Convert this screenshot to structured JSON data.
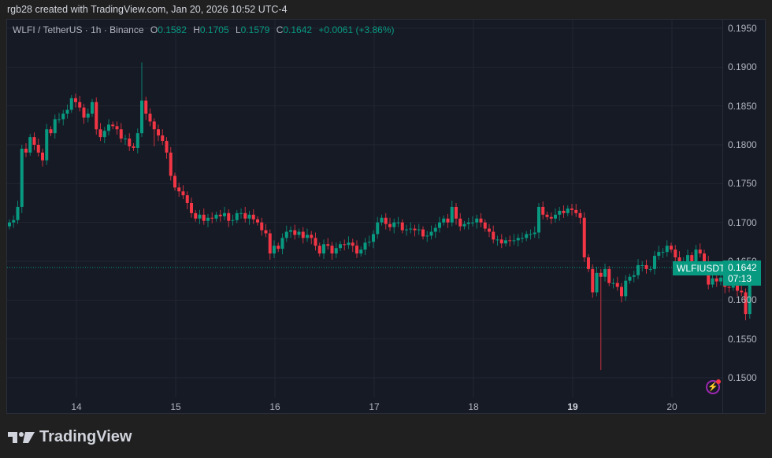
{
  "credit": "rgb28 created with TradingView.com, Jan 20, 2026 10:52 UTC-4",
  "legend": {
    "symbol": "WLFI / TetherUS · 1h · Binance",
    "o_label": "O",
    "o_value": "0.1582",
    "h_label": "H",
    "h_value": "0.1705",
    "l_label": "L",
    "l_value": "0.1579",
    "c_label": "C",
    "c_value": "0.1642",
    "change": "+0.0061 (+3.86%)"
  },
  "last_price_label": {
    "symbol": "WLFIUSDT",
    "price": "0.1642",
    "countdown": "07:13"
  },
  "logo_text": "TradingView",
  "colors": {
    "up": "#089981",
    "down": "#f23645",
    "background": "#161a25",
    "grid": "#232632",
    "accent": "#9c27b0"
  },
  "chart_data": {
    "type": "candlestick",
    "title": "WLFI / TetherUS · 1h · Binance",
    "xlabel": "",
    "ylabel": "",
    "ylim": [
      0.149,
      0.196
    ],
    "grid": true,
    "y_ticks": [
      "0.1950",
      "0.1900",
      "0.1850",
      "0.1800",
      "0.1750",
      "0.1700",
      "0.1650",
      "0.1600",
      "0.1550",
      "0.1500"
    ],
    "x_ticks": [
      "14",
      "15",
      "16",
      "17",
      "18",
      "19",
      "20"
    ],
    "x_tick_bold": "19",
    "current_price": 0.1642,
    "closes": [
      0.17,
      0.1703,
      0.172,
      0.1795,
      0.179,
      0.181,
      0.18,
      0.179,
      0.178,
      0.182,
      0.1815,
      0.1833,
      0.1833,
      0.184,
      0.1845,
      0.186,
      0.1855,
      0.1848,
      0.1835,
      0.184,
      0.1855,
      0.182,
      0.181,
      0.1818,
      0.1826,
      0.1824,
      0.182,
      0.1808,
      0.1808,
      0.1798,
      0.1796,
      0.1815,
      0.1857,
      0.184,
      0.183,
      0.182,
      0.1812,
      0.1805,
      0.179,
      0.176,
      0.1745,
      0.174,
      0.1735,
      0.1725,
      0.1712,
      0.1705,
      0.171,
      0.1702,
      0.1706,
      0.1705,
      0.171,
      0.1708,
      0.1712,
      0.1702,
      0.1703,
      0.1712,
      0.1712,
      0.1705,
      0.171,
      0.1704,
      0.17,
      0.169,
      0.1686,
      0.166,
      0.167,
      0.1666,
      0.168,
      0.1688,
      0.169,
      0.1684,
      0.1688,
      0.168,
      0.1684,
      0.168,
      0.167,
      0.166,
      0.1672,
      0.167,
      0.166,
      0.1667,
      0.1672,
      0.1671,
      0.1674,
      0.167,
      0.166,
      0.1665,
      0.1674,
      0.1675,
      0.1685,
      0.17,
      0.1706,
      0.1698,
      0.1694,
      0.17,
      0.17,
      0.169,
      0.1691,
      0.1692,
      0.169,
      0.1691,
      0.1682,
      0.1683,
      0.1688,
      0.1693,
      0.17,
      0.1705,
      0.17,
      0.172,
      0.1705,
      0.1695,
      0.1698,
      0.17,
      0.17,
      0.1705,
      0.17,
      0.1692,
      0.1688,
      0.1678,
      0.1678,
      0.1673,
      0.1677,
      0.1676,
      0.1677,
      0.168,
      0.168,
      0.1685,
      0.1685,
      0.1687,
      0.172,
      0.171,
      0.1707,
      0.1705,
      0.171,
      0.1715,
      0.1712,
      0.1718,
      0.1716,
      0.1712,
      0.1706,
      0.1655,
      0.164,
      0.161,
      0.1635,
      0.163,
      0.164,
      0.1622,
      0.1622,
      0.1617,
      0.1605,
      0.1625,
      0.163,
      0.1632,
      0.1645,
      0.1645,
      0.164,
      0.164,
      0.1657,
      0.1662,
      0.1662,
      0.167,
      0.1665,
      0.1655,
      0.1645,
      0.165,
      0.1658,
      0.1648,
      0.1665,
      0.166,
      0.165,
      0.162,
      0.1628,
      0.1624,
      0.1629,
      0.1617,
      0.1616,
      0.162,
      0.1612,
      0.161,
      0.1582,
      0.1642
    ],
    "lows_spikes": {
      "143": 0.151,
      "35": 0.1798
    },
    "highs_spikes": {
      "32": 0.1906,
      "183": 0.1705
    }
  }
}
